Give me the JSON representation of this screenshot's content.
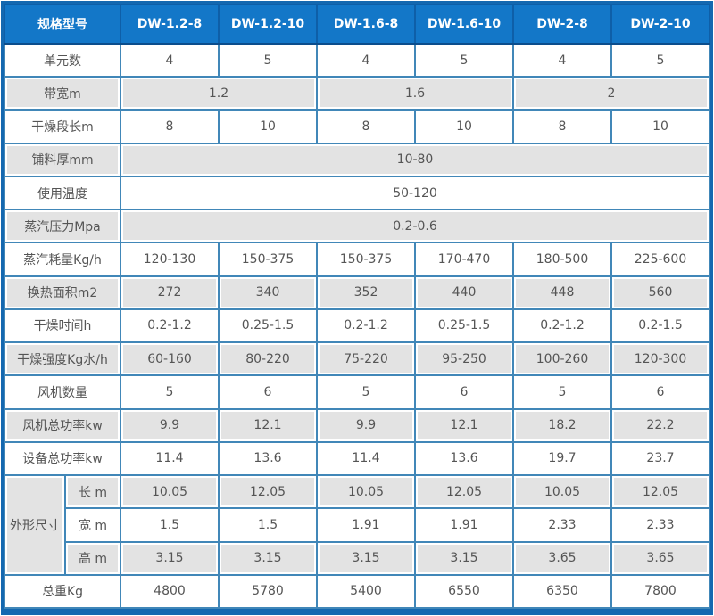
{
  "colors": {
    "header_bg": "#1377c8",
    "header_text": "#ffffff",
    "frame_blue": "#1468b0",
    "cell_border": "#4187b8",
    "row_alt_gray": "#e3e3e3",
    "body_text": "#555555"
  },
  "table": {
    "corner_label": "规格型号",
    "models": [
      "DW-1.2-8",
      "DW-1.2-10",
      "DW-1.6-8",
      "DW-1.6-10",
      "DW-2-8",
      "DW-2-10"
    ],
    "rows": [
      {
        "label": "单元数",
        "values": [
          "4",
          "5",
          "4",
          "5",
          "4",
          "5"
        ]
      },
      {
        "label": "带宽m",
        "values": [
          "1.2",
          "1.6",
          "2"
        ],
        "colspan": 2
      },
      {
        "label": "干燥段长m",
        "values": [
          "8",
          "10",
          "8",
          "10",
          "8",
          "10"
        ]
      },
      {
        "label": "铺料厚mm",
        "values": [
          "10-80"
        ],
        "colspan": 6
      },
      {
        "label": "使用温度",
        "values": [
          "50-120"
        ],
        "colspan": 6
      },
      {
        "label": "蒸汽压力Mpa",
        "values": [
          "0.2-0.6"
        ],
        "colspan": 6
      },
      {
        "label": "蒸汽耗量Kg/h",
        "values": [
          "120-130",
          "150-375",
          "150-375",
          "170-470",
          "180-500",
          "225-600"
        ]
      },
      {
        "label": "换热面积m2",
        "values": [
          "272",
          "340",
          "352",
          "440",
          "448",
          "560"
        ]
      },
      {
        "label": "干燥时间h",
        "values": [
          "0.2-1.2",
          "0.25-1.5",
          "0.2-1.2",
          "0.25-1.5",
          "0.2-1.2",
          "0.2-1.5"
        ]
      },
      {
        "label": "干燥强度Kg水/h",
        "values": [
          "60-160",
          "80-220",
          "75-220",
          "95-250",
          "100-260",
          "120-300"
        ]
      },
      {
        "label": "风机数量",
        "values": [
          "5",
          "6",
          "5",
          "6",
          "5",
          "6"
        ]
      },
      {
        "label": "风机总功率kw",
        "values": [
          "9.9",
          "12.1",
          "9.9",
          "12.1",
          "18.2",
          "22.2"
        ]
      },
      {
        "label": "设备总功率kw",
        "values": [
          "11.4",
          "13.6",
          "11.4",
          "13.6",
          "19.7",
          "23.7"
        ]
      }
    ],
    "dimensions": {
      "group_label": "外形尺寸",
      "rows": [
        {
          "label": "长 m",
          "values": [
            "10.05",
            "12.05",
            "10.05",
            "12.05",
            "10.05",
            "12.05"
          ]
        },
        {
          "label": "宽 m",
          "values": [
            "1.5",
            "1.5",
            "1.91",
            "1.91",
            "2.33",
            "2.33"
          ]
        },
        {
          "label": "高 m",
          "values": [
            "3.15",
            "3.15",
            "3.15",
            "3.15",
            "3.65",
            "3.65"
          ]
        }
      ]
    },
    "footer": {
      "label": "总重Kg",
      "values": [
        "4800",
        "5780",
        "5400",
        "6550",
        "6350",
        "7800"
      ]
    }
  }
}
